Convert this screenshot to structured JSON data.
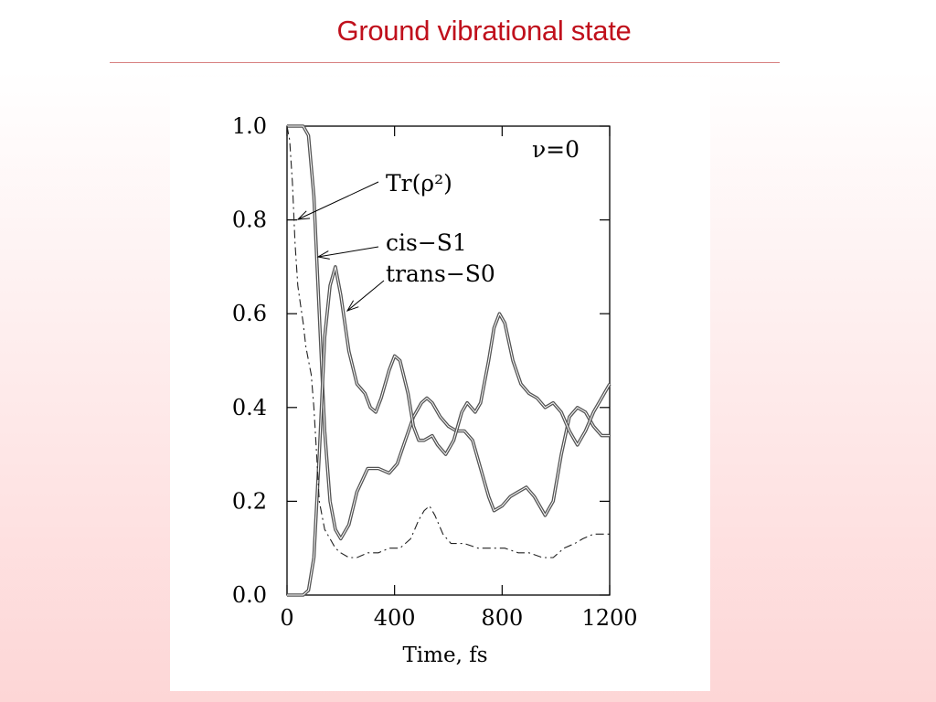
{
  "slide": {
    "title": "Ground vibrational state"
  },
  "chart_data": {
    "type": "line",
    "title": "",
    "xlabel": "Time, fs",
    "ylabel": "",
    "xlim": [
      0,
      1200
    ],
    "ylim": [
      0,
      1.0
    ],
    "x_ticks": [
      0,
      400,
      800,
      1200
    ],
    "y_ticks": [
      0.0,
      0.2,
      0.4,
      0.6,
      0.8,
      1.0
    ],
    "x_tick_labels": [
      "0",
      "400",
      "800",
      "1200"
    ],
    "y_tick_labels": [
      "0.0",
      "0.2",
      "0.4",
      "0.6",
      "0.8",
      "1.0"
    ],
    "grid": false,
    "annotation": "ν=0",
    "series": [
      {
        "name": "cis–S1",
        "style": "thick-double",
        "points": [
          [
            0,
            1.0
          ],
          [
            60,
            1.0
          ],
          [
            80,
            0.98
          ],
          [
            100,
            0.85
          ],
          [
            120,
            0.6
          ],
          [
            140,
            0.35
          ],
          [
            160,
            0.2
          ],
          [
            180,
            0.14
          ],
          [
            200,
            0.12
          ],
          [
            230,
            0.15
          ],
          [
            260,
            0.22
          ],
          [
            300,
            0.27
          ],
          [
            340,
            0.27
          ],
          [
            380,
            0.26
          ],
          [
            410,
            0.28
          ],
          [
            440,
            0.33
          ],
          [
            470,
            0.38
          ],
          [
            500,
            0.41
          ],
          [
            520,
            0.42
          ],
          [
            540,
            0.41
          ],
          [
            570,
            0.38
          ],
          [
            600,
            0.36
          ],
          [
            630,
            0.35
          ],
          [
            660,
            0.35
          ],
          [
            690,
            0.33
          ],
          [
            720,
            0.27
          ],
          [
            750,
            0.21
          ],
          [
            770,
            0.18
          ],
          [
            800,
            0.19
          ],
          [
            830,
            0.21
          ],
          [
            860,
            0.22
          ],
          [
            890,
            0.23
          ],
          [
            920,
            0.21
          ],
          [
            960,
            0.17
          ],
          [
            990,
            0.2
          ],
          [
            1020,
            0.3
          ],
          [
            1050,
            0.38
          ],
          [
            1080,
            0.4
          ],
          [
            1110,
            0.39
          ],
          [
            1140,
            0.36
          ],
          [
            1170,
            0.34
          ],
          [
            1200,
            0.34
          ]
        ]
      },
      {
        "name": "trans–S0",
        "style": "thick-double",
        "points": [
          [
            0,
            0.0
          ],
          [
            60,
            0.0
          ],
          [
            80,
            0.01
          ],
          [
            100,
            0.08
          ],
          [
            120,
            0.3
          ],
          [
            140,
            0.55
          ],
          [
            160,
            0.66
          ],
          [
            180,
            0.7
          ],
          [
            200,
            0.64
          ],
          [
            230,
            0.52
          ],
          [
            260,
            0.45
          ],
          [
            290,
            0.43
          ],
          [
            310,
            0.4
          ],
          [
            330,
            0.39
          ],
          [
            350,
            0.42
          ],
          [
            380,
            0.48
          ],
          [
            400,
            0.51
          ],
          [
            420,
            0.5
          ],
          [
            450,
            0.43
          ],
          [
            470,
            0.36
          ],
          [
            490,
            0.33
          ],
          [
            510,
            0.33
          ],
          [
            540,
            0.34
          ],
          [
            560,
            0.32
          ],
          [
            590,
            0.3
          ],
          [
            620,
            0.33
          ],
          [
            650,
            0.39
          ],
          [
            670,
            0.41
          ],
          [
            700,
            0.39
          ],
          [
            720,
            0.41
          ],
          [
            750,
            0.5
          ],
          [
            770,
            0.57
          ],
          [
            790,
            0.6
          ],
          [
            810,
            0.58
          ],
          [
            840,
            0.5
          ],
          [
            870,
            0.45
          ],
          [
            900,
            0.43
          ],
          [
            930,
            0.42
          ],
          [
            960,
            0.4
          ],
          [
            990,
            0.41
          ],
          [
            1020,
            0.39
          ],
          [
            1050,
            0.35
          ],
          [
            1080,
            0.32
          ],
          [
            1110,
            0.35
          ],
          [
            1140,
            0.39
          ],
          [
            1170,
            0.42
          ],
          [
            1200,
            0.45
          ]
        ]
      },
      {
        "name": "Tr(ρ²)",
        "style": "dash-dot",
        "points": [
          [
            0,
            1.0
          ],
          [
            10,
            0.97
          ],
          [
            20,
            0.88
          ],
          [
            30,
            0.75
          ],
          [
            40,
            0.66
          ],
          [
            50,
            0.62
          ],
          [
            60,
            0.58
          ],
          [
            70,
            0.53
          ],
          [
            80,
            0.5
          ],
          [
            90,
            0.47
          ],
          [
            100,
            0.4
          ],
          [
            110,
            0.3
          ],
          [
            120,
            0.2
          ],
          [
            140,
            0.14
          ],
          [
            160,
            0.12
          ],
          [
            180,
            0.1
          ],
          [
            200,
            0.09
          ],
          [
            230,
            0.08
          ],
          [
            260,
            0.08
          ],
          [
            300,
            0.09
          ],
          [
            340,
            0.09
          ],
          [
            380,
            0.1
          ],
          [
            420,
            0.1
          ],
          [
            460,
            0.12
          ],
          [
            490,
            0.16
          ],
          [
            510,
            0.18
          ],
          [
            530,
            0.19
          ],
          [
            550,
            0.17
          ],
          [
            580,
            0.13
          ],
          [
            610,
            0.11
          ],
          [
            660,
            0.11
          ],
          [
            710,
            0.1
          ],
          [
            760,
            0.1
          ],
          [
            810,
            0.1
          ],
          [
            860,
            0.09
          ],
          [
            900,
            0.09
          ],
          [
            950,
            0.08
          ],
          [
            990,
            0.08
          ],
          [
            1030,
            0.1
          ],
          [
            1070,
            0.11
          ],
          [
            1100,
            0.12
          ],
          [
            1140,
            0.13
          ],
          [
            1170,
            0.13
          ],
          [
            1200,
            0.13
          ]
        ]
      }
    ],
    "labels": [
      "Tr(ρ²)",
      "cis−S1",
      "trans−S0"
    ]
  }
}
